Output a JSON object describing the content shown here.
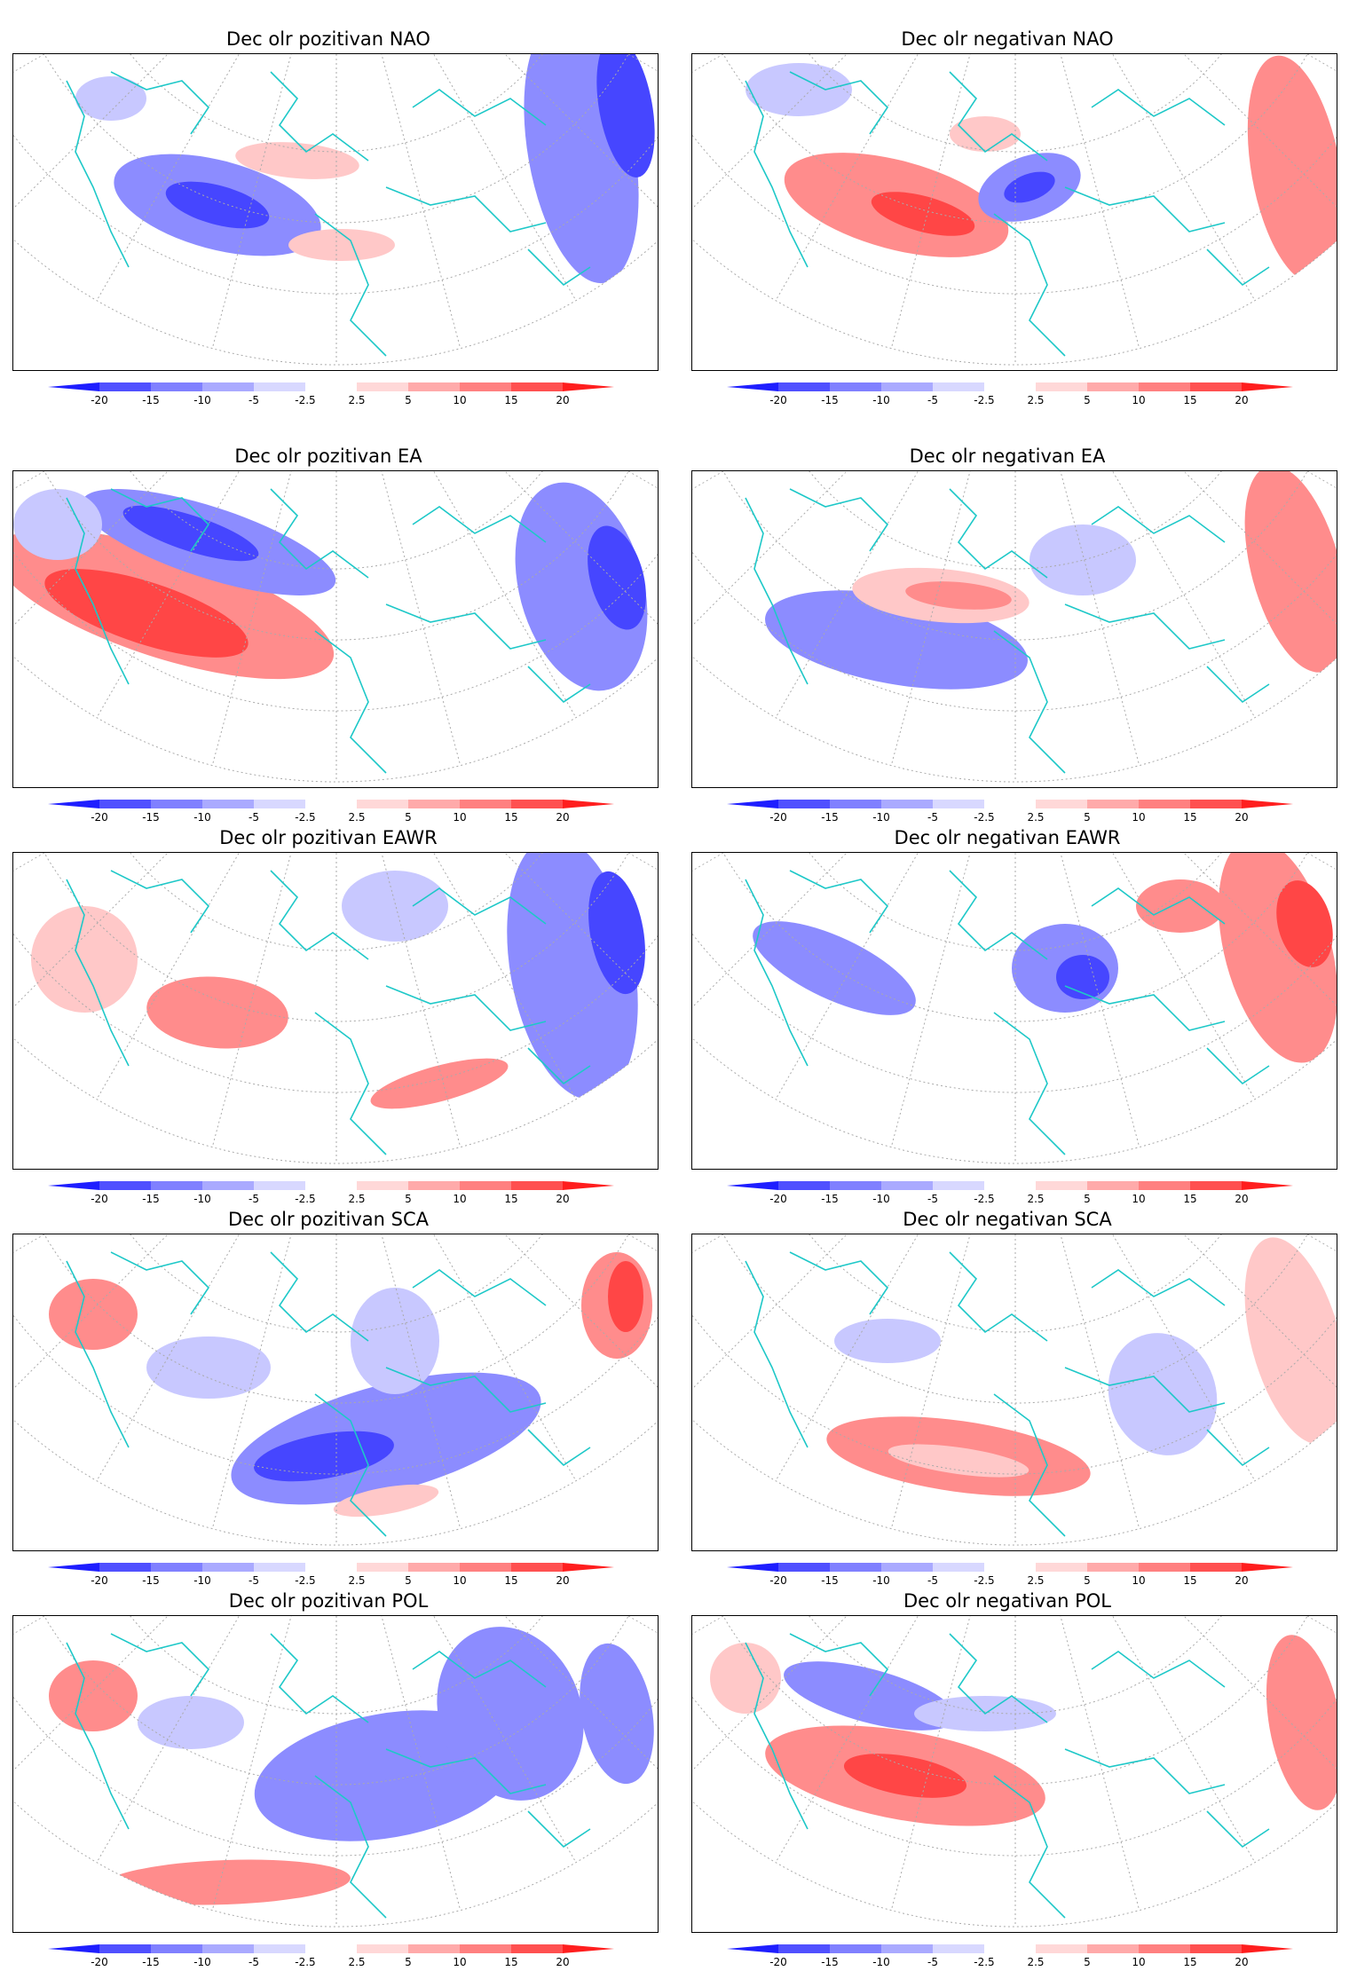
{
  "panels": [
    {
      "id": "nao-pos",
      "title": "Dec olr pozitivan NAO",
      "row": 0,
      "col": 0
    },
    {
      "id": "nao-neg",
      "title": "Dec olr negativan NAO",
      "row": 0,
      "col": 1
    },
    {
      "id": "ea-pos",
      "title": "Dec olr pozitivan EA",
      "row": 1,
      "col": 0
    },
    {
      "id": "ea-neg",
      "title": "Dec olr negativan EA",
      "row": 1,
      "col": 1
    },
    {
      "id": "eawr-pos",
      "title": "Dec olr pozitivan EAWR",
      "row": 2,
      "col": 0
    },
    {
      "id": "eawr-neg",
      "title": "Dec olr negativan EAWR",
      "row": 2,
      "col": 1
    },
    {
      "id": "sca-pos",
      "title": "Dec olr pozitivan SCA",
      "row": 3,
      "col": 0
    },
    {
      "id": "sca-neg",
      "title": "Dec olr negativan SCA",
      "row": 3,
      "col": 1
    },
    {
      "id": "pol-pos",
      "title": "Dec olr pozitivan POL",
      "row": 4,
      "col": 0
    },
    {
      "id": "pol-neg",
      "title": "Dec olr negativan POL",
      "row": 4,
      "col": 1
    }
  ],
  "colorbar": {
    "labels": [
      "-20",
      "-15",
      "-10",
      "-5",
      "-2.5",
      "2.5",
      "5",
      "10",
      "15",
      "20"
    ],
    "colors": [
      "#1e1eff",
      "#5050ff",
      "#8080ff",
      "#aaaaff",
      "#d8d8ff",
      "#ffffff",
      "#ffd8d8",
      "#ffaaaa",
      "#ff8080",
      "#ff5050",
      "#ff1e1e"
    ]
  },
  "map_colors": {
    "coast": "#1ec8c8",
    "graticule": "#aaaaaa",
    "neg_strong": "#4646ff",
    "neg_mid": "#8c8cff",
    "neg_light": "#c8c8ff",
    "pos_strong": "#ff4646",
    "pos_mid": "#ff8c8c",
    "pos_light": "#ffc8c8"
  }
}
